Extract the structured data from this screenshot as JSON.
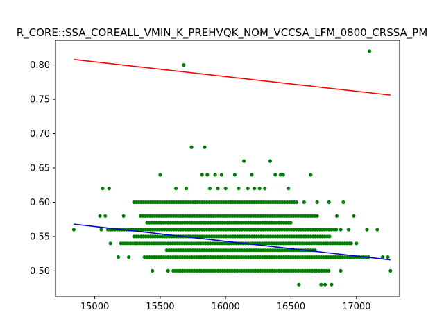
{
  "chart_data": {
    "type": "scatter",
    "title": "R_CORE::SSA_COREALL_VMIN_K_PREHVQK_NOM_VCCSA_LFM_0800_CRSSA_PM",
    "xlabel": "",
    "ylabel": "",
    "xlim": [
      14700,
      17330
    ],
    "ylim": [
      0.463,
      0.836
    ],
    "xticks": [
      15000,
      15500,
      16000,
      16500,
      17000
    ],
    "yticks": [
      0.5,
      0.55,
      0.6,
      0.65,
      0.7,
      0.75,
      0.8
    ],
    "xtick_labels": [
      "15000",
      "15500",
      "16000",
      "16500",
      "17000"
    ],
    "ytick_labels": [
      "0.50",
      "0.55",
      "0.60",
      "0.65",
      "0.70",
      "0.75",
      "0.80"
    ],
    "grid": false,
    "colors": {
      "points": "#008000",
      "fit_upper": "#ff0000",
      "fit_lower": "#0000cc"
    },
    "bands": [
      {
        "y": 0.5,
        "x_range": [
          15600,
          16800
        ]
      },
      {
        "y": 0.52,
        "x_range": [
          15400,
          17100
        ]
      },
      {
        "y": 0.53,
        "x_range": [
          15550,
          16700
        ]
      },
      {
        "y": 0.54,
        "x_range": [
          15200,
          16950
        ]
      },
      {
        "y": 0.55,
        "x_range": [
          15300,
          16800
        ]
      },
      {
        "y": 0.56,
        "x_range": [
          15100,
          16850
        ]
      },
      {
        "y": 0.57,
        "x_range": [
          15400,
          16500
        ]
      },
      {
        "y": 0.58,
        "x_range": [
          15350,
          16700
        ]
      },
      {
        "y": 0.6,
        "x_range": [
          15300,
          16550
        ]
      }
    ],
    "points": [
      [
        14840,
        0.56
      ],
      [
        15060,
        0.62
      ],
      [
        15110,
        0.62
      ],
      [
        15040,
        0.58
      ],
      [
        15120,
        0.54
      ],
      [
        15180,
        0.52
      ],
      [
        15260,
        0.52
      ],
      [
        15050,
        0.56
      ],
      [
        15080,
        0.58
      ],
      [
        15130,
        0.56
      ],
      [
        15220,
        0.58
      ],
      [
        15280,
        0.56
      ],
      [
        15320,
        0.54
      ],
      [
        15380,
        0.52
      ],
      [
        15500,
        0.64
      ],
      [
        15480,
        0.6
      ],
      [
        15440,
        0.5
      ],
      [
        15560,
        0.5
      ],
      [
        15620,
        0.62
      ],
      [
        15650,
        0.5
      ],
      [
        15700,
        0.62
      ],
      [
        15740,
        0.68
      ],
      [
        15770,
        0.6
      ],
      [
        15820,
        0.64
      ],
      [
        15840,
        0.68
      ],
      [
        15860,
        0.64
      ],
      [
        15880,
        0.62
      ],
      [
        15920,
        0.64
      ],
      [
        15940,
        0.62
      ],
      [
        15970,
        0.64
      ],
      [
        16000,
        0.62
      ],
      [
        16040,
        0.6
      ],
      [
        16070,
        0.64
      ],
      [
        16100,
        0.62
      ],
      [
        16140,
        0.66
      ],
      [
        16170,
        0.62
      ],
      [
        16200,
        0.64
      ],
      [
        16220,
        0.62
      ],
      [
        16260,
        0.62
      ],
      [
        16300,
        0.62
      ],
      [
        16340,
        0.66
      ],
      [
        16380,
        0.64
      ],
      [
        16420,
        0.64
      ],
      [
        16440,
        0.64
      ],
      [
        16480,
        0.62
      ],
      [
        16560,
        0.48
      ],
      [
        16600,
        0.6
      ],
      [
        16650,
        0.64
      ],
      [
        16700,
        0.6
      ],
      [
        16730,
        0.48
      ],
      [
        16760,
        0.48
      ],
      [
        16810,
        0.48
      ],
      [
        16790,
        0.6
      ],
      [
        16850,
        0.58
      ],
      [
        16880,
        0.56
      ],
      [
        16900,
        0.6
      ],
      [
        16940,
        0.56
      ],
      [
        16960,
        0.54
      ],
      [
        17000,
        0.54
      ],
      [
        17020,
        0.52
      ],
      [
        16980,
        0.58
      ],
      [
        17080,
        0.56
      ],
      [
        17160,
        0.56
      ],
      [
        17200,
        0.52
      ],
      [
        17240,
        0.52
      ],
      [
        17260,
        0.5
      ],
      [
        16950,
        0.52
      ],
      [
        16880,
        0.5
      ],
      [
        16840,
        0.52
      ],
      [
        15680,
        0.8
      ],
      [
        17100,
        0.82
      ]
    ],
    "series": [
      {
        "type": "line",
        "color": "#ff0000",
        "x": [
          14840,
          17260
        ],
        "y": [
          0.808,
          0.756
        ]
      },
      {
        "type": "line",
        "color": "#0000cc",
        "x": [
          14840,
          17260
        ],
        "y": [
          0.568,
          0.516
        ]
      }
    ]
  }
}
